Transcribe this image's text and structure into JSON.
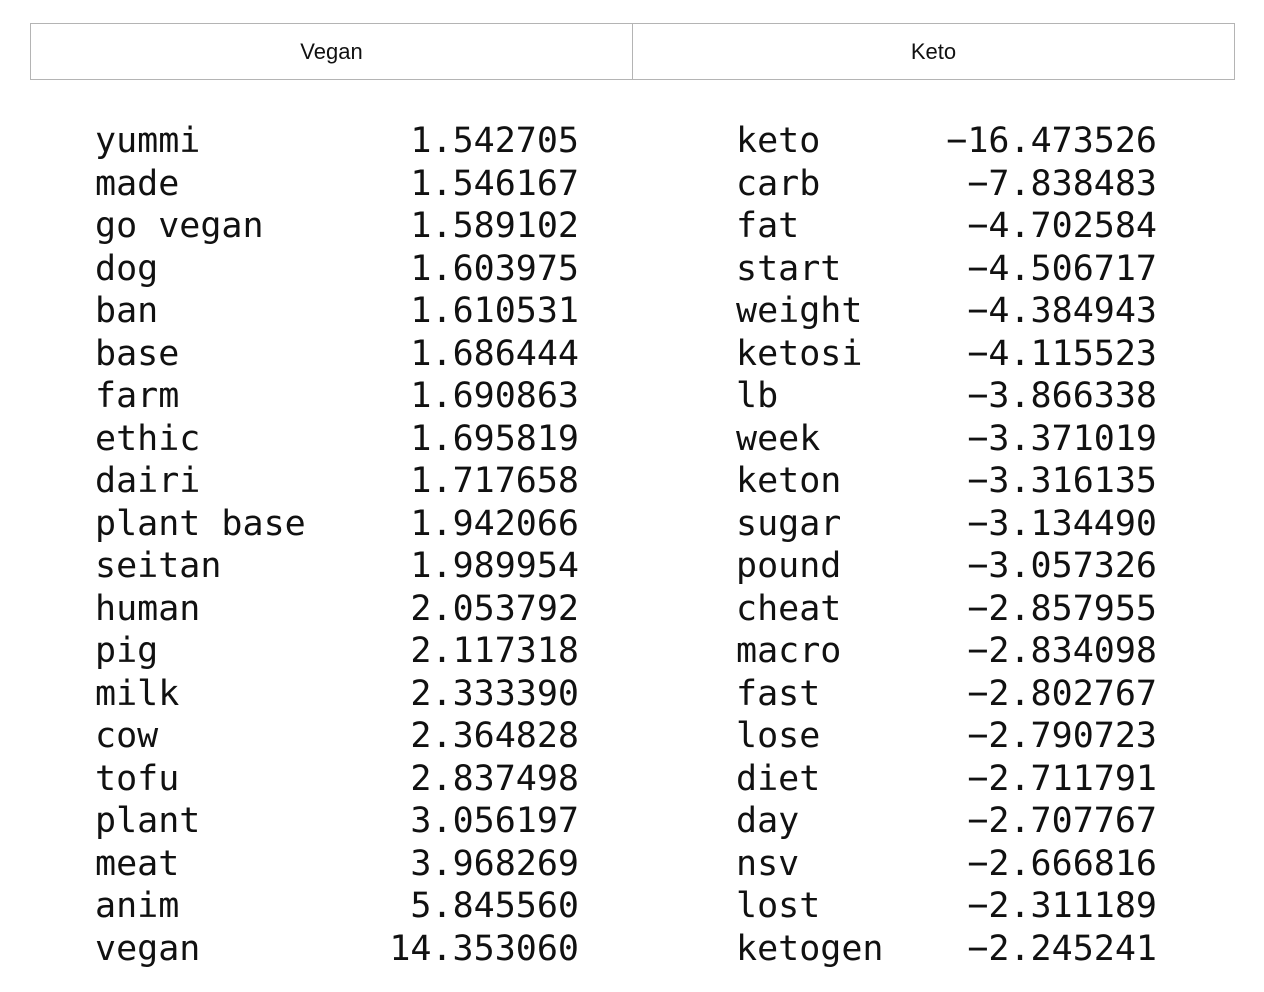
{
  "headers": {
    "vegan": "Vegan",
    "keto": "Keto"
  },
  "vegan": [
    {
      "term": "yummi",
      "value": "1.542705"
    },
    {
      "term": "made",
      "value": "1.546167"
    },
    {
      "term": "go vegan",
      "value": "1.589102"
    },
    {
      "term": "dog",
      "value": "1.603975"
    },
    {
      "term": "ban",
      "value": "1.610531"
    },
    {
      "term": "base",
      "value": "1.686444"
    },
    {
      "term": "farm",
      "value": "1.690863"
    },
    {
      "term": "ethic",
      "value": "1.695819"
    },
    {
      "term": "dairi",
      "value": "1.717658"
    },
    {
      "term": "plant base",
      "value": "1.942066"
    },
    {
      "term": "seitan",
      "value": "1.989954"
    },
    {
      "term": "human",
      "value": "2.053792"
    },
    {
      "term": "pig",
      "value": "2.117318"
    },
    {
      "term": "milk",
      "value": "2.333390"
    },
    {
      "term": "cow",
      "value": "2.364828"
    },
    {
      "term": "tofu",
      "value": "2.837498"
    },
    {
      "term": "plant",
      "value": "3.056197"
    },
    {
      "term": "meat",
      "value": "3.968269"
    },
    {
      "term": "anim",
      "value": "5.845560"
    },
    {
      "term": "vegan",
      "value": "14.353060"
    }
  ],
  "keto": [
    {
      "term": "keto",
      "value": "−16.473526"
    },
    {
      "term": "carb",
      "value": "−7.838483"
    },
    {
      "term": "fat",
      "value": "−4.702584"
    },
    {
      "term": "start",
      "value": "−4.506717"
    },
    {
      "term": "weight",
      "value": "−4.384943"
    },
    {
      "term": "ketosi",
      "value": "−4.115523"
    },
    {
      "term": "lb",
      "value": "−3.866338"
    },
    {
      "term": "week",
      "value": "−3.371019"
    },
    {
      "term": "keton",
      "value": "−3.316135"
    },
    {
      "term": "sugar",
      "value": "−3.134490"
    },
    {
      "term": "pound",
      "value": "−3.057326"
    },
    {
      "term": "cheat",
      "value": "−2.857955"
    },
    {
      "term": "macro",
      "value": "−2.834098"
    },
    {
      "term": "fast",
      "value": "−2.802767"
    },
    {
      "term": "lose",
      "value": "−2.790723"
    },
    {
      "term": "diet",
      "value": "−2.711791"
    },
    {
      "term": "day",
      "value": "−2.707767"
    },
    {
      "term": "nsv",
      "value": "−2.666816"
    },
    {
      "term": "lost",
      "value": "−2.311189"
    },
    {
      "term": "ketogen",
      "value": "−2.245241"
    }
  ]
}
